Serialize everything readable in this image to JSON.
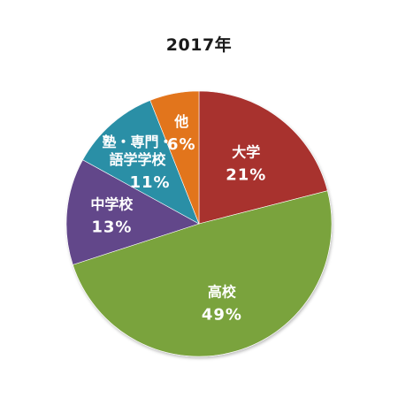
{
  "chart_data": {
    "type": "pie",
    "title": "2017年",
    "slices": [
      {
        "name": "大学",
        "label_lines": [
          "大学"
        ],
        "value": 21,
        "pct_label": "21%",
        "color": "#a8312f"
      },
      {
        "name": "高校",
        "label_lines": [
          "高校"
        ],
        "value": 49,
        "pct_label": "49%",
        "color": "#7aa33c"
      },
      {
        "name": "中学校",
        "label_lines": [
          "中学校"
        ],
        "value": 13,
        "pct_label": "13%",
        "color": "#62468a"
      },
      {
        "name": "塾・専門・語学学校",
        "label_lines": [
          "塾・専門・",
          "語学学校"
        ],
        "value": 11,
        "pct_label": "11%",
        "color": "#2a8fa6"
      },
      {
        "name": "他",
        "label_lines": [
          "他"
        ],
        "value": 6,
        "pct_label": "6%",
        "color": "#e2741f"
      }
    ],
    "start_position": "top",
    "direction": "clockwise",
    "legend": "none"
  }
}
